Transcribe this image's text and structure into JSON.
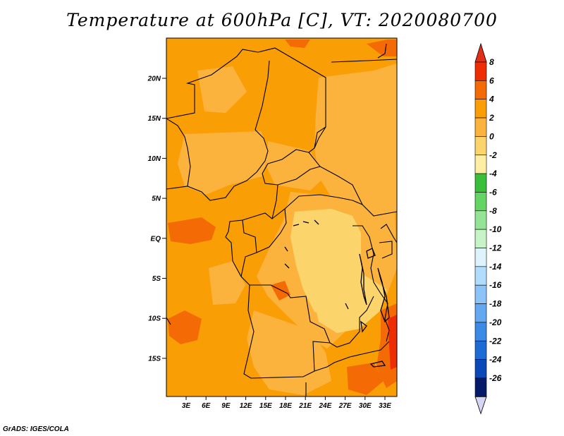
{
  "title": "Temperature at 600hPa [C], VT: 2020080700",
  "credit": "GrADS: IGES/COLA",
  "map": {
    "lat_labels": [
      "20N",
      "15N",
      "10N",
      "5N",
      "EQ",
      "5S",
      "10S",
      "15S"
    ],
    "lon_labels": [
      "3E",
      "6E",
      "9E",
      "12E",
      "15E",
      "18E",
      "21E",
      "24E",
      "27E",
      "30E",
      "33E"
    ],
    "base_color": "#fa9e05"
  },
  "colorbar": {
    "labels": [
      "8",
      "6",
      "4",
      "2",
      "0",
      "-2",
      "-4",
      "-6",
      "-8",
      "-10",
      "-12",
      "-14",
      "-16",
      "-18",
      "-20",
      "-22",
      "-24",
      "-26"
    ],
    "colors": [
      "#ee2d04",
      "#f46a05",
      "#fa9e05",
      "#fcb33e",
      "#fcd46c",
      "#fdeea3",
      "#3bbf3b",
      "#64d464",
      "#95e495",
      "#c6f4c6",
      "#def4fd",
      "#b2dcfb",
      "#8cc4f8",
      "#64a8f2",
      "#3a8ae6",
      "#1d6cd6",
      "#0a4ab8",
      "#061a6a"
    ],
    "top_arrow_color": "#e03018",
    "bottom_arrow_color": "#d6d6f4"
  }
}
